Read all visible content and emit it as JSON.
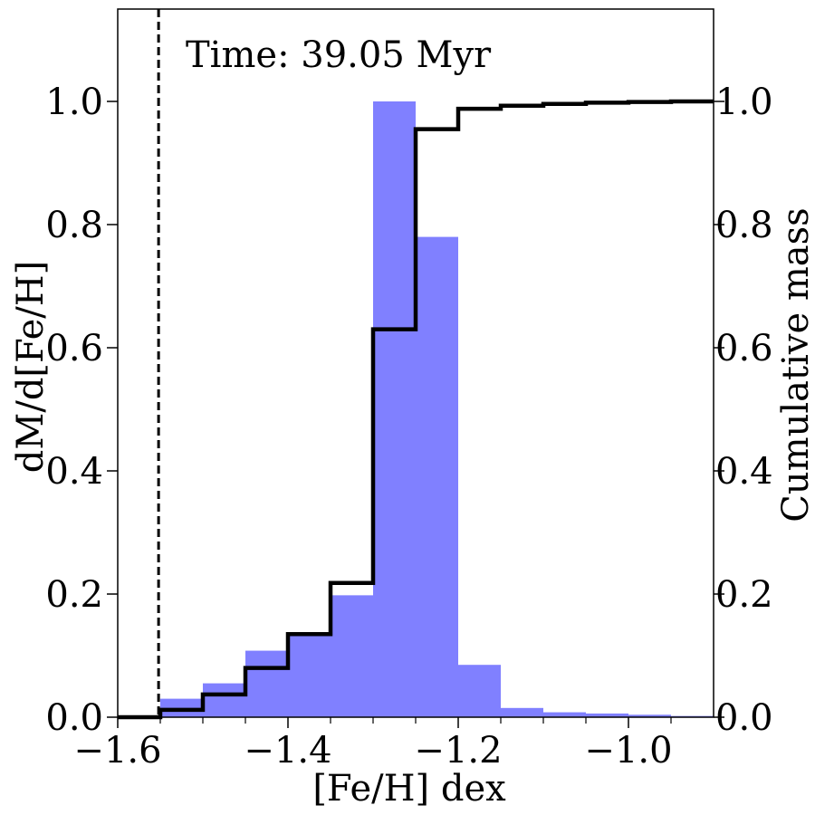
{
  "chart_data": {
    "type": "bar",
    "title": "",
    "annotation": "Time: 39.05 Myr",
    "xlabel": "[Fe/H] dex",
    "ylabel": "dM/d[Fe/H]",
    "ylabel_right": "Cumulative mass",
    "xlim": [
      -1.6,
      -0.9
    ],
    "ylim": [
      0.0,
      1.15
    ],
    "ylim_right": [
      0.0,
      1.15
    ],
    "x_ticks": [
      -1.6,
      -1.4,
      -1.2,
      -1.0
    ],
    "x_tick_labels": [
      "−1.6",
      "−1.4",
      "−1.2",
      "−1.0"
    ],
    "x_minor_ticks": [
      -1.55,
      -1.5,
      -1.45,
      -1.35,
      -1.3,
      -1.25,
      -1.15,
      -1.1,
      -1.05,
      -0.95
    ],
    "y_ticks": [
      0.0,
      0.2,
      0.4,
      0.6,
      0.8,
      1.0
    ],
    "y_tick_labels": [
      "0.0",
      "0.2",
      "0.4",
      "0.6",
      "0.8",
      "1.0"
    ],
    "y_right_ticks": [
      0.0,
      0.2,
      0.4,
      0.6,
      0.8,
      1.0
    ],
    "y_right_tick_labels": [
      "0.0",
      "0.2",
      "0.4",
      "0.6",
      "0.8",
      "1.0"
    ],
    "grid": false,
    "histogram": {
      "color": "#8080ff",
      "bin_edges": [
        -1.55,
        -1.5,
        -1.45,
        -1.4,
        -1.35,
        -1.3,
        -1.25,
        -1.2,
        -1.15,
        -1.1,
        -1.05,
        -1.0,
        -0.95,
        -0.9
      ],
      "values": [
        0.03,
        0.055,
        0.108,
        0.138,
        0.198,
        1.0,
        0.78,
        0.085,
        0.015,
        0.008,
        0.006,
        0.004,
        0.002
      ]
    },
    "cumulative": {
      "color": "#000000",
      "x": [
        -1.6,
        -1.55,
        -1.5,
        -1.45,
        -1.4,
        -1.35,
        -1.3,
        -1.25,
        -1.2,
        -1.15,
        -1.1,
        -1.05,
        -1.0,
        -0.95,
        -0.9
      ],
      "values": [
        0.0,
        0.012,
        0.037,
        0.08,
        0.135,
        0.218,
        0.63,
        0.955,
        0.988,
        0.993,
        0.996,
        0.998,
        0.999,
        1.0,
        1.0
      ]
    },
    "vertical_line": {
      "x": -1.552,
      "style": "dashed",
      "color": "#000000"
    }
  }
}
